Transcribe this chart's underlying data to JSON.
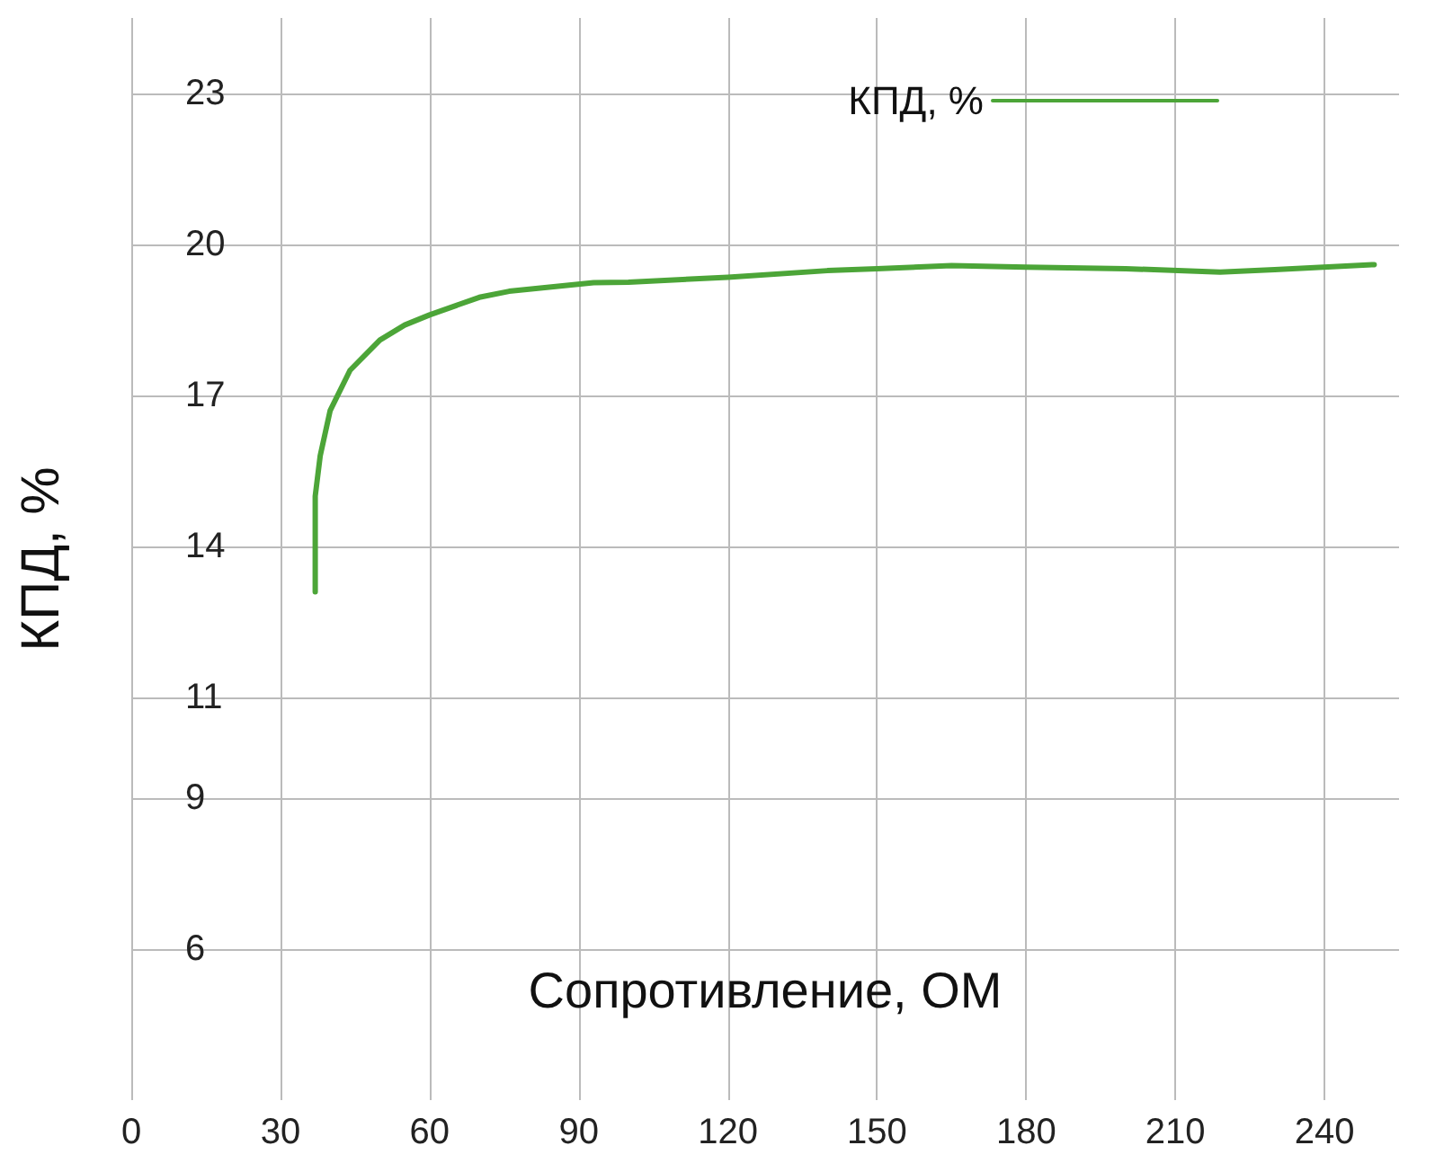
{
  "chart_data": {
    "type": "line",
    "xlabel": "Сопротивление, ОМ",
    "ylabel": "КПД, %",
    "x": [
      37,
      37,
      38,
      40,
      44,
      50,
      55,
      60,
      70,
      76,
      93,
      100,
      120,
      140,
      150,
      165,
      180,
      200,
      219,
      230,
      250
    ],
    "series": [
      {
        "name": "КПД, %",
        "color": "#4ca538",
        "values": [
          13.1,
          15,
          15.8,
          16.7,
          17.5,
          18.1,
          18.4,
          18.6,
          18.95,
          19.07,
          19.24,
          19.25,
          19.35,
          19.48,
          19.52,
          19.58,
          19.55,
          19.52,
          19.45,
          19.5,
          19.6
        ]
      }
    ],
    "xlim": [
      0,
      255
    ],
    "xticks": [
      0,
      30,
      60,
      90,
      120,
      150,
      180,
      210,
      240
    ],
    "ylim": [
      3,
      24.5
    ],
    "yticks": [
      6,
      9,
      11,
      14,
      17,
      20,
      23
    ],
    "grid": true,
    "legend": "top right",
    "marker": "none",
    "line_style": "solid"
  }
}
